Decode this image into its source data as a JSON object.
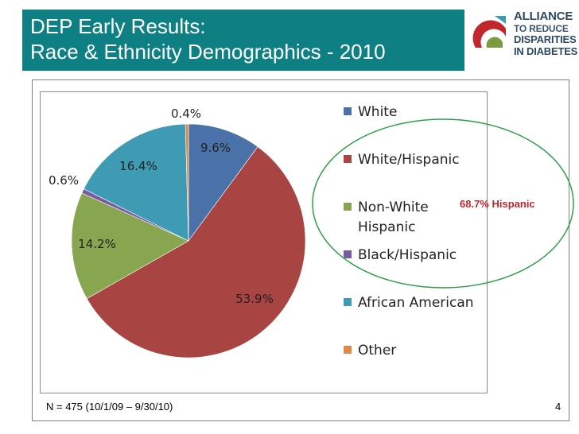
{
  "header": {
    "title_line1": "DEP Early Results:",
    "title_line2": "Race & Ethnicity Demographics - 2010",
    "band_color": "#0e8083"
  },
  "logo": {
    "line1": "ALLIANCE",
    "line2": "TO REDUCE",
    "line3": "DISPARITIES",
    "line4": "IN DIABETES"
  },
  "chart_data": {
    "type": "pie",
    "title": "",
    "legend_position": "right",
    "categories": [
      "White",
      "White/Hispanic",
      "Non-White Hispanic",
      "Black/Hispanic",
      "African American",
      "Other"
    ],
    "values": [
      9.6,
      53.9,
      14.2,
      0.6,
      16.4,
      0.4
    ],
    "labels": [
      "9.6%",
      "53.9%",
      "14.2%",
      "0.6%",
      "16.4%",
      "0.4%"
    ],
    "colors": [
      "#4a72a8",
      "#a84542",
      "#87a64f",
      "#7a5aa0",
      "#3e9bb3",
      "#de8a44"
    ],
    "annotation": "68.7% Hispanic",
    "annotation_color": "#c0262c",
    "annotation_ring_color": "#2e9e4a"
  },
  "footer": {
    "note": "N = 475 (10/1/09 – 9/30/10)",
    "page_number": "4"
  }
}
